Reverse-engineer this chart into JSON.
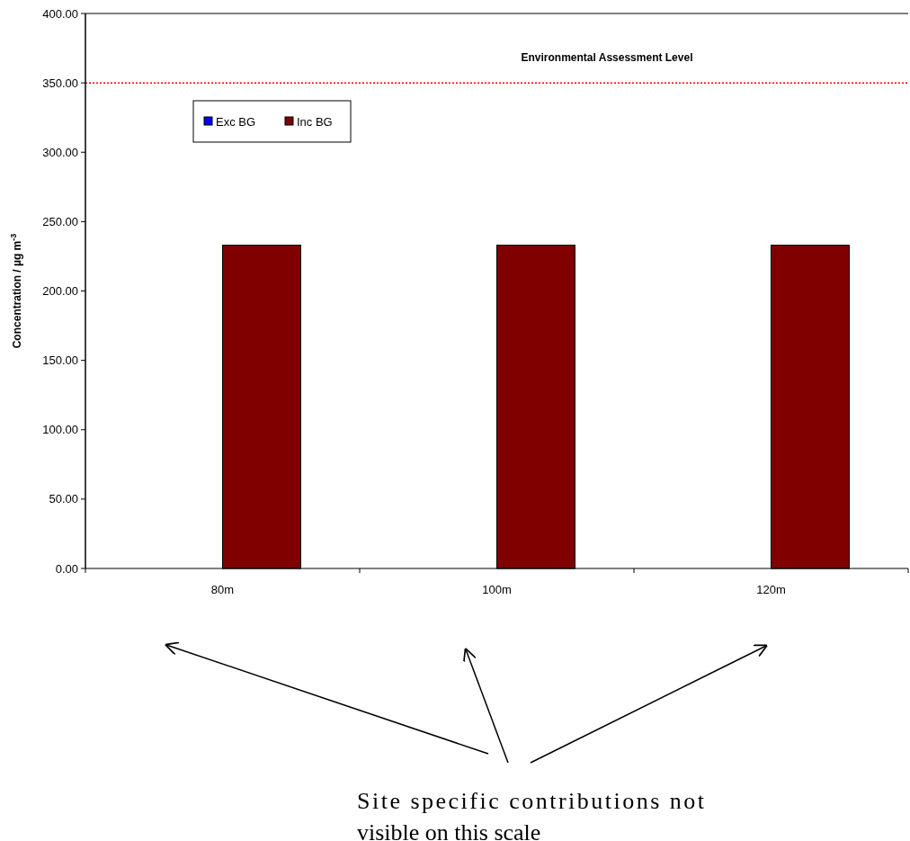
{
  "chart_data": {
    "type": "bar",
    "categories": [
      "80m",
      "100m",
      "120m"
    ],
    "series": [
      {
        "name": "Exc BG",
        "color": "#0000ff",
        "values": [
          null,
          null,
          null
        ]
      },
      {
        "name": "Inc BG",
        "color": "#800000",
        "values": [
          233,
          233,
          233
        ]
      }
    ],
    "ylabel": "Concentration / µg m$^{-3}$",
    "ylim": [
      0,
      400
    ],
    "yticks": [
      {
        "value": 0,
        "label": "0.00"
      },
      {
        "value": 50,
        "label": "50.00"
      },
      {
        "value": 100,
        "label": "100.00"
      },
      {
        "value": 150,
        "label": "150.00"
      },
      {
        "value": 200,
        "label": "200.00"
      },
      {
        "value": 250,
        "label": "250.00"
      },
      {
        "value": 300,
        "label": "300.00"
      },
      {
        "value": 350,
        "label": "350.00"
      },
      {
        "value": 400,
        "label": "400.00"
      }
    ],
    "ref_lines": [
      {
        "axis": "y",
        "value": 350,
        "label": "Environmental Assessment Level",
        "color": "#ff0000",
        "line_style": "dotted"
      }
    ],
    "annotations": [
      "Site specific contributions not visible on this scale"
    ],
    "legend": "top left",
    "grid": false
  }
}
